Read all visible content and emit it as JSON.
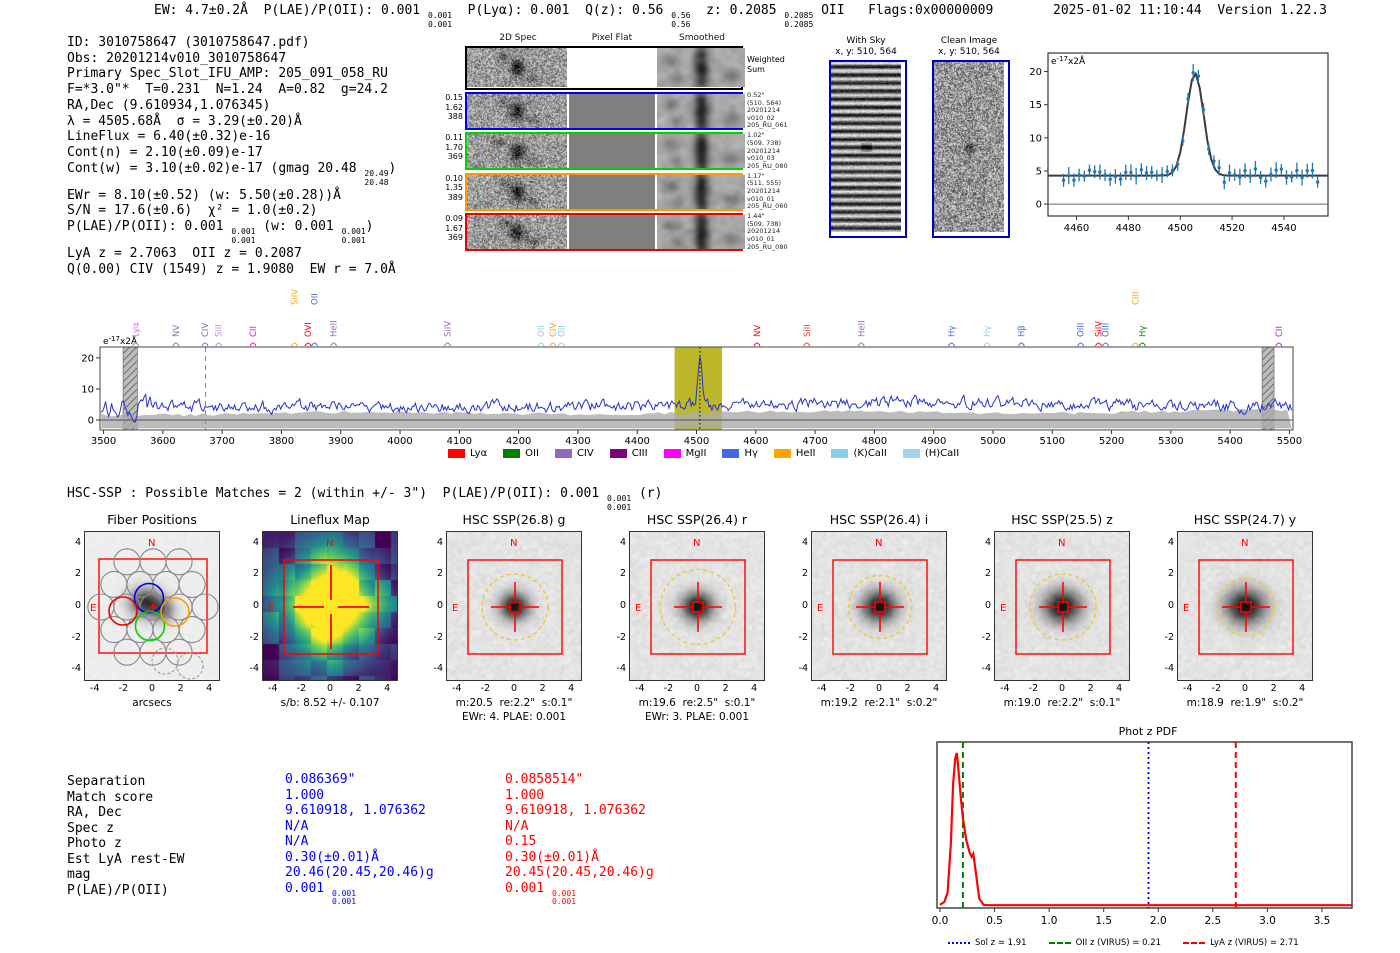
{
  "header": {
    "line_segments": [
      {
        "t": "EW: 4.7±0.2Å  P(LAE)/P(OII): 0.001 "
      },
      {
        "up": "0.001",
        "dn": "0.001"
      },
      {
        "t": "  P(Lyα): 0.001  Q(z): 0.56 "
      },
      {
        "up": "0.56",
        "dn": "0.56"
      },
      {
        "t": "  z: 0.2085 "
      },
      {
        "up": "0.2085",
        "dn": "0.2085"
      },
      {
        "t": " OII   Flags:0x00000009"
      }
    ],
    "datetime": "2025-01-02 11:10:44  Version 1.22.3"
  },
  "info_lines": [
    [
      {
        "t": "ID: 3010758647 (3010758647.pdf)"
      }
    ],
    [
      {
        "t": "Obs: 20201214v010_3010758647"
      }
    ],
    [
      {
        "t": "Primary Spec_Slot_IFU_AMP: 205_091_058_RU"
      }
    ],
    [
      {
        "t": "F=*3.0\"*  T=0.231  N=1.24  A=0.82  g=24.2"
      }
    ],
    [
      {
        "t": "RA,Dec (9.610934,1.076345)"
      }
    ],
    [
      {
        "t": "λ = 4505.68Å  σ = 3.29(±0.20)Å"
      }
    ],
    [
      {
        "t": "LineFlux = 6.40(±0.32)e-16"
      }
    ],
    [
      {
        "t": "Cont(n) = 2.10(±0.09)e-17"
      }
    ],
    [
      {
        "t": "Cont(w) = 3.10(±0.02)e-17 (gmag 20.48 "
      },
      {
        "up": "20.49",
        "dn": "20.48"
      },
      {
        "t": ")"
      }
    ],
    [
      {
        "t": "EWr = 8.10(±0.52) (w: 5.50(±0.28))Å"
      }
    ],
    [
      {
        "t": "S/N = 17.6(±0.6)  χ² = 1.0(±0.2)"
      }
    ],
    [
      {
        "t": "P(LAE)/P(OII): 0.001 "
      },
      {
        "up": "0.001",
        "dn": "0.001"
      },
      {
        "t": " (w: 0.001 "
      },
      {
        "up": "0.001",
        "dn": "0.001"
      },
      {
        "t": ")"
      }
    ],
    [
      {
        "t": "LyA z = 2.7063  OII z = 0.2087"
      }
    ],
    [
      {
        "t": "Q(0.00) CIV (1549) z = 1.9080  EW r = 7.0Å"
      }
    ]
  ],
  "spec2d": {
    "col_titles": [
      "2D Spec",
      "Pixel Flat",
      "Smoothed"
    ],
    "weighted_label": [
      "Weighted",
      "Sum"
    ],
    "rows": [
      {
        "color": "#0000ee",
        "left": [
          "0.15",
          "1.62",
          "388"
        ],
        "right": [
          "0.52\"",
          "(510, 564)",
          "20201214",
          "v010_02",
          "205_RU_061"
        ]
      },
      {
        "color": "#00d400",
        "left": [
          "0.11",
          "1.70",
          "369"
        ],
        "right": [
          "1.02\"",
          "(509, 738)",
          "20201214",
          "v010_03",
          "205_RU_080"
        ]
      },
      {
        "color": "#ff9900",
        "left": [
          "0.10",
          "1.35",
          "389"
        ],
        "right": [
          "1.17\"",
          "(511, 555)",
          "20201214",
          "v010_01",
          "205_RU_060"
        ]
      },
      {
        "color": "#ee0000",
        "left": [
          "0.09",
          "1.67",
          "369"
        ],
        "right": [
          "1.44\"",
          "(509, 738)",
          "20201214",
          "v010_01",
          "205_RU_080"
        ]
      }
    ]
  },
  "sky_panels": {
    "withsky": {
      "title": "With Sky",
      "sub": "x, y: 510, 564"
    },
    "clean": {
      "title": "Clean Image",
      "sub": "x, y: 510, 564"
    }
  },
  "hsc_line_segments": [
    {
      "t": "HSC-SSP : Possible Matches = 2 (within +/- 3\")  P(LAE)/P(OII): 0.001 "
    },
    {
      "up": "0.001",
      "dn": "0.001"
    },
    {
      "t": " (r)"
    }
  ],
  "panels": [
    {
      "type": "fiber",
      "title": "Fiber Positions",
      "sub1": "arcsecs",
      "sub2": ""
    },
    {
      "type": "lineflux",
      "title": "Lineflux Map",
      "sub1": "s/b: 8.52 +/- 0.107",
      "sub2": ""
    },
    {
      "type": "cutout",
      "title": "HSC SSP(26.8) g",
      "sub1": "m:20.5  re:2.2\"  s:0.1\"",
      "sub2": "EWr: 4. PLAE: 0.001",
      "re_arcsec": 2.2
    },
    {
      "type": "cutout",
      "title": "HSC SSP(26.4) r",
      "sub1": "m:19.6  re:2.5\"  s:0.1\"",
      "sub2": "EWr: 3. PLAE: 0.001",
      "re_arcsec": 2.5
    },
    {
      "type": "cutout",
      "title": "HSC SSP(26.4) i",
      "sub1": "m:19.2  re:2.1\"  s:0.2\"",
      "sub2": "",
      "re_arcsec": 2.1
    },
    {
      "type": "cutout",
      "title": "HSC SSP(25.5) z",
      "sub1": "m:19.0  re:2.2\"  s:0.1\"",
      "sub2": "",
      "re_arcsec": 2.2
    },
    {
      "type": "cutout",
      "title": "HSC SSP(24.7) y",
      "sub1": "m:18.9  re:1.9\"  s:0.2\"",
      "sub2": "",
      "re_arcsec": 1.9
    }
  ],
  "panel_axis": {
    "ticks": [
      4,
      2,
      0,
      -2,
      -4
    ],
    "xticks": [
      -4,
      -2,
      0,
      2,
      4
    ],
    "north": "N",
    "east": "E",
    "compass_color": "#ff0000"
  },
  "match_table": {
    "labels": [
      "Separation",
      "Match score",
      "RA, Dec",
      "Spec z",
      "Photo z",
      "Est LyA rest-EW",
      "mag",
      "P(LAE)/P(OII)"
    ],
    "col1_color": "#0000ff",
    "col2_color": "#ff0000",
    "col1": [
      [
        {
          "t": "0.086369\""
        }
      ],
      [
        {
          "t": "1.000"
        }
      ],
      [
        {
          "t": "9.610918, 1.076362"
        }
      ],
      [
        {
          "t": "N/A"
        }
      ],
      [
        {
          "t": "N/A"
        }
      ],
      [
        {
          "t": "0.30(±0.01)Å"
        }
      ],
      [
        {
          "t": "20.46(20.45,20.46)g"
        }
      ],
      [
        {
          "t": "0.001 "
        },
        {
          "up": "0.001",
          "dn": "0.001"
        }
      ]
    ],
    "col2": [
      [
        {
          "t": "0.0858514\""
        }
      ],
      [
        {
          "t": "1.000"
        }
      ],
      [
        {
          "t": "9.610918, 1.076362"
        }
      ],
      [
        {
          "t": "N/A"
        }
      ],
      [
        {
          "t": "0.15"
        }
      ],
      [
        {
          "t": "0.30(±0.01)Å"
        }
      ],
      [
        {
          "t": "20.45(20.45,20.46)g"
        }
      ],
      [
        {
          "t": "0.001 "
        },
        {
          "up": "0.001",
          "dn": "0.001"
        }
      ]
    ]
  },
  "chart_data": [
    {
      "type": "line",
      "id": "inset_emission_line_fit",
      "title": "",
      "unit_label": {
        "prefix": "e",
        "exp": "-17",
        "suffix": "x2Å"
      },
      "xlim": [
        4449,
        4557
      ],
      "ylim": [
        -1.8,
        22.8
      ],
      "xticks": [
        4460,
        4480,
        4500,
        4520,
        4540
      ],
      "yticks": [
        0,
        5,
        10,
        15,
        20
      ],
      "gaussian": {
        "center": 4505.68,
        "sigma": 3.29,
        "baseline": 4.3,
        "peak_height": 15.4
      },
      "point_color": "#1f77b4",
      "fit_color": "#3a3a3a"
    },
    {
      "type": "line",
      "id": "full_spectrum",
      "title": "",
      "unit_label": {
        "prefix": "e",
        "exp": "-17",
        "suffix": "x2Å"
      },
      "xlim": [
        3494,
        5506
      ],
      "ylim": [
        -3.2,
        23.5
      ],
      "xticks": [
        3500,
        3600,
        3700,
        3800,
        3900,
        4000,
        4100,
        4200,
        4300,
        4400,
        4500,
        4600,
        4700,
        4800,
        4900,
        5000,
        5100,
        5200,
        5300,
        5400,
        5500
      ],
      "yticks": [
        0,
        10,
        20
      ],
      "baseline": 4.3,
      "peak": {
        "center": 4505.68,
        "sigma": 3.5,
        "height": 15.3
      },
      "highlight_band": [
        4463,
        4543
      ],
      "highlight_color": "#bdb82a",
      "hatch_bands": [
        [
          3533,
          3557
        ],
        [
          5454,
          5474
        ]
      ],
      "dashed_vline": 3672,
      "dotted_vline": 4505.7,
      "line_color": "#2433cf",
      "line_markers": [
        {
          "label": "Lyα",
          "wave": 3554,
          "color": "#cc66dd",
          "raised": false
        },
        {
          "label": "NV",
          "wave": 3622,
          "color": "#9467bd",
          "raised": false
        },
        {
          "label": "CIV",
          "wave": 3671,
          "color": "#9467bd",
          "raised": false
        },
        {
          "label": "SiII",
          "wave": 3694,
          "color": "#b98fd6",
          "raised": false
        },
        {
          "label": "CII",
          "wave": 3752,
          "color": "#ff00ff",
          "raised": false
        },
        {
          "label": "SiIV",
          "wave": 3822,
          "color": "#ffa500",
          "raised": true
        },
        {
          "label": "OVI",
          "wave": 3845,
          "color": "#ff0000",
          "raised": false
        },
        {
          "label": "OII",
          "wave": 3856,
          "color": "#4169e1",
          "raised": true
        },
        {
          "label": "HeII",
          "wave": 3888,
          "color": "#9467bd",
          "raised": false
        },
        {
          "label": "SiIV",
          "wave": 4080,
          "color": "#9467bd",
          "raised": false
        },
        {
          "label": "OII",
          "wave": 4238,
          "color": "#87ceeb",
          "raised": false
        },
        {
          "label": "CIV",
          "wave": 4258,
          "color": "#ffa500",
          "raised": false
        },
        {
          "label": "OII",
          "wave": 4272,
          "color": "#87ceeb",
          "raised": false
        },
        {
          "label": "NV",
          "wave": 4602,
          "color": "#ff0000",
          "raised": false
        },
        {
          "label": "SiII",
          "wave": 4686,
          "color": "#ff3333",
          "raised": false
        },
        {
          "label": "HeII",
          "wave": 4778,
          "color": "#9467bd",
          "raised": false
        },
        {
          "label": "Hγ",
          "wave": 4930,
          "color": "#4169e1",
          "raised": false
        },
        {
          "label": "Hγ",
          "wave": 4990,
          "color": "#87ceeb",
          "raised": false
        },
        {
          "label": "Hβ",
          "wave": 5048,
          "color": "#4169e1",
          "raised": false
        },
        {
          "label": "OIII",
          "wave": 5148,
          "color": "#4169e1",
          "raised": false
        },
        {
          "label": "SiIV",
          "wave": 5178,
          "color": "#ff0000",
          "raised": false
        },
        {
          "label": "OIII",
          "wave": 5190,
          "color": "#4169e1",
          "raised": false
        },
        {
          "label": "CIII",
          "wave": 5240,
          "color": "#ffa500",
          "raised": true
        },
        {
          "label": "Hγ",
          "wave": 5252,
          "color": "#008000",
          "raised": false
        },
        {
          "label": "CII",
          "wave": 5482,
          "color": "#a020f0",
          "raised": false
        }
      ],
      "legend": [
        {
          "label": "Lyα",
          "color": "#ff0000"
        },
        {
          "label": "OII",
          "color": "#008000"
        },
        {
          "label": "CIV",
          "color": "#9467bd"
        },
        {
          "label": "CIII",
          "color": "#800080"
        },
        {
          "label": "MgII",
          "color": "#ff00ff"
        },
        {
          "label": "Hγ",
          "color": "#4169e1"
        },
        {
          "label": "HeII",
          "color": "#ffa500"
        },
        {
          "label": "(K)CaII",
          "color": "#87ceeb"
        },
        {
          "label": "(H)CaII",
          "color": "#a4d3ee"
        }
      ]
    },
    {
      "type": "line",
      "id": "phot_z_pdf",
      "title": "Phot z PDF",
      "xlim": [
        -0.05,
        3.65
      ],
      "xticks": [
        0.0,
        0.5,
        1.0,
        1.5,
        2.0,
        2.5,
        3.0,
        3.5
      ],
      "curve_color": "#ff0000",
      "curve_x": [
        0.0,
        0.04,
        0.07,
        0.1,
        0.12,
        0.14,
        0.155,
        0.17,
        0.19,
        0.21,
        0.24,
        0.27,
        0.29,
        0.305,
        0.315,
        0.33,
        0.36,
        0.4,
        0.45,
        3.8
      ],
      "curve_y": [
        0.02,
        0.04,
        0.1,
        0.42,
        0.8,
        0.97,
        1.0,
        0.88,
        0.72,
        0.58,
        0.44,
        0.36,
        0.33,
        0.35,
        0.3,
        0.22,
        0.06,
        0.02,
        0.018,
        0.018
      ],
      "vlines": [
        {
          "x": 0.21,
          "color": "#008000",
          "style": "dashed"
        },
        {
          "x": 1.91,
          "color": "#0000ff",
          "style": "dotted"
        },
        {
          "x": 2.71,
          "color": "#ff0000",
          "style": "dashed"
        }
      ],
      "legend": [
        {
          "label": "Sol z = 1.91",
          "color": "#0000ff",
          "style": "dotted"
        },
        {
          "label": "OII z (VIRUS) = 0.21",
          "color": "#008000",
          "style": "dashed"
        },
        {
          "label": "LyA z (VIRUS) = 2.71",
          "color": "#ff0000",
          "style": "dashed"
        }
      ]
    }
  ]
}
